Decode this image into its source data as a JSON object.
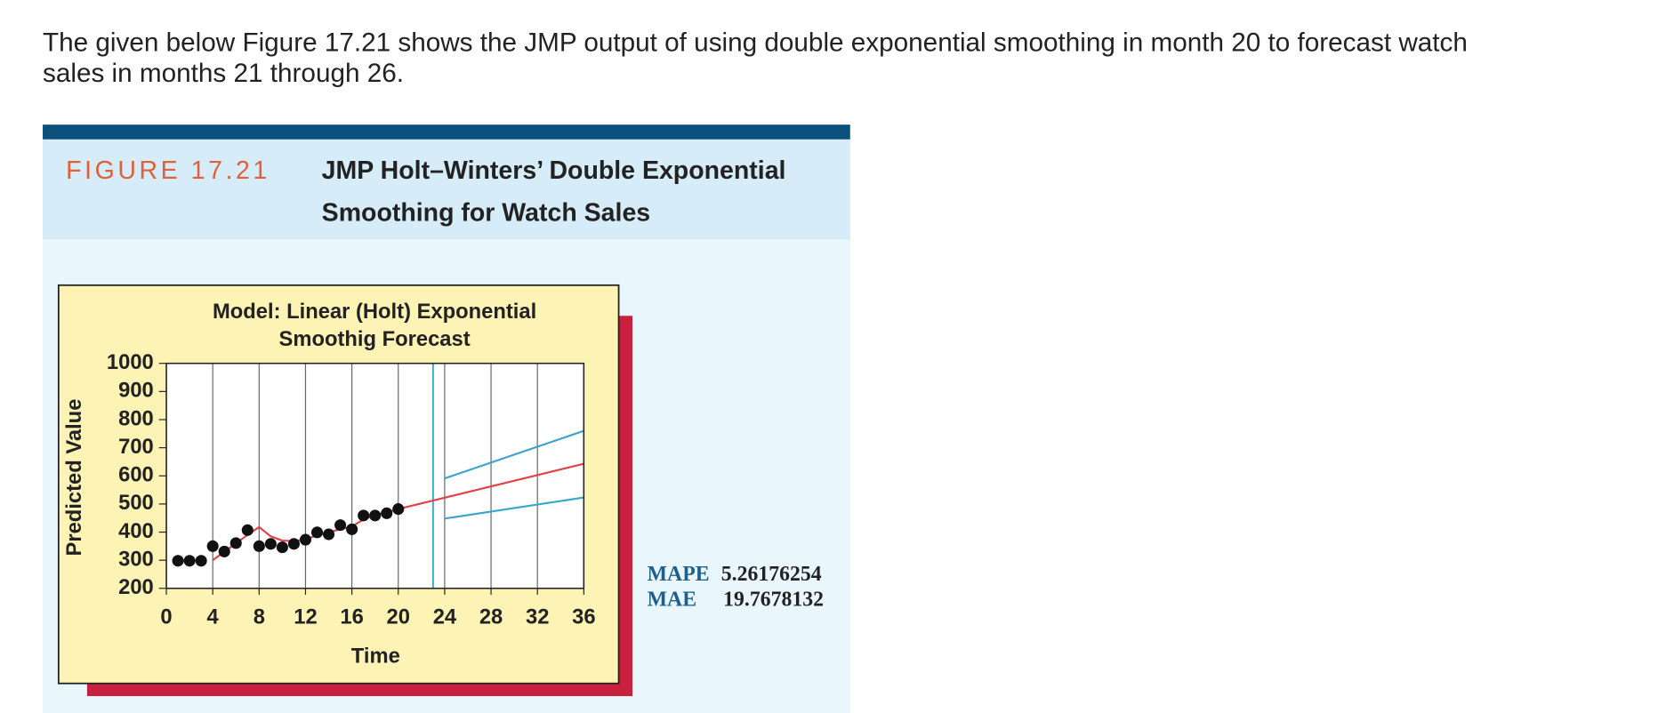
{
  "question": [
    "The given below Figure 17.21 shows the JMP output of using double exponential smoothing in month 20 to forecast watch",
    "sales in months 21 through 26."
  ],
  "figure_label": "FIGURE 17.21",
  "figure_title": [
    "JMP Holt–Winters’ Double Exponential",
    "Smoothing for Watch Sales"
  ],
  "stats": [
    {
      "label": "MAPE",
      "value": "5.26176254"
    },
    {
      "label": "MAE",
      "value": "19.7678132"
    }
  ],
  "chart_data": {
    "type": "combo",
    "title_lines": [
      "Model: Linear (Holt) Exponential",
      "Smoothig Forecast"
    ],
    "x_label": "Time",
    "y_label": "Predicted Value",
    "xlim": [
      0,
      36
    ],
    "ylim": [
      200,
      1000
    ],
    "xticks": [
      0,
      4,
      8,
      12,
      16,
      20,
      24,
      28,
      32,
      36
    ],
    "yticks": [
      200,
      300,
      400,
      500,
      600,
      700,
      800,
      900,
      1000
    ],
    "grid_x": true,
    "forecast_origin": 23,
    "forecast_origin_color": "#3aa6c8",
    "series": [
      {
        "type": "line",
        "color": "#e0424a",
        "x": [
          4,
          5,
          6,
          7,
          8,
          9,
          10,
          11,
          12,
          13,
          14,
          15,
          16,
          17,
          18,
          19,
          20,
          36
        ],
        "values": [
          300,
          330,
          360,
          390,
          418,
          385,
          370,
          368,
          375,
          388,
          400,
          410,
          420,
          445,
          460,
          470,
          482,
          643
        ]
      },
      {
        "type": "line",
        "color": "#3aa6c8",
        "x": [
          24,
          36
        ],
        "values": [
          591,
          760
        ]
      },
      {
        "type": "line",
        "color": "#3aa6c8",
        "x": [
          24,
          36
        ],
        "values": [
          448,
          523
        ]
      },
      {
        "type": "scatter",
        "color": "#111111",
        "x": [
          1,
          2,
          3,
          4,
          5,
          6,
          7,
          8,
          9,
          10,
          11,
          12,
          13,
          14,
          15,
          16,
          17,
          18,
          19,
          20
        ],
        "values": [
          298,
          298,
          298,
          350,
          331,
          361,
          407,
          350,
          358,
          346,
          358,
          373,
          399,
          392,
          425,
          410,
          459,
          459,
          467,
          482
        ]
      }
    ]
  }
}
